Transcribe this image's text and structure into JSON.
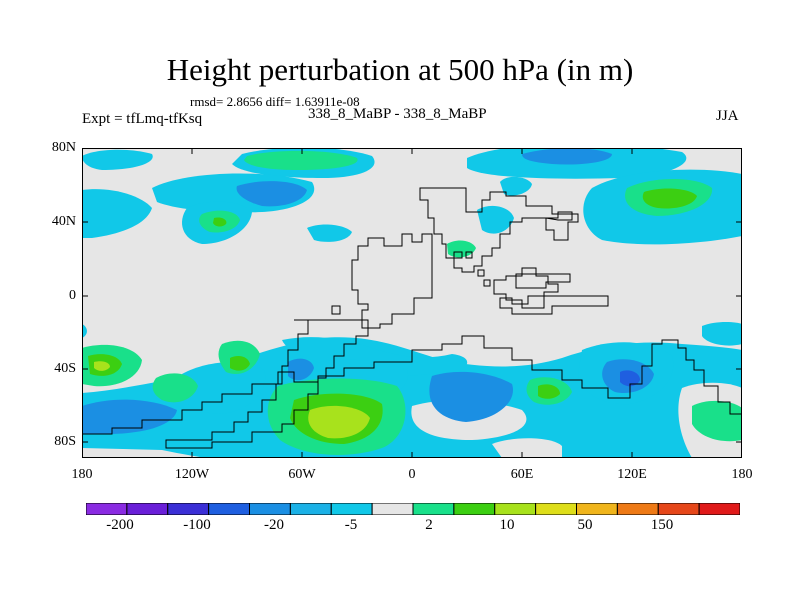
{
  "title": "Height perturbation at 500 hPa (in m)",
  "stats_line": "rmsd= 2.8656 diff= 1.63911e-08",
  "expt_label": "Expt = tfLmq-tfKsq",
  "case_label": "338_8_MaBP - 338_8_MaBP",
  "season": "JJA",
  "lat_labels": [
    "80N",
    "40N",
    "0",
    "40S",
    "80S"
  ],
  "lon_labels": [
    "180",
    "120W",
    "60W",
    "0",
    "60E",
    "120E",
    "180"
  ],
  "colorbar": {
    "colors": [
      "#8a2be2",
      "#6a1fd8",
      "#3b2fd6",
      "#1f5fe0",
      "#1b8fe3",
      "#1bb1e6",
      "#11c8e8",
      "#e6e6e6",
      "#19e08a",
      "#3ccf12",
      "#a8e21c",
      "#dede1a",
      "#f0b51c",
      "#ee7a16",
      "#e6471a",
      "#e01a1a"
    ],
    "labels": [
      "-200",
      "-100",
      "-20",
      "-5",
      "2",
      "10",
      "50",
      "150"
    ]
  },
  "map_colors": {
    "background": "#e6e6e6",
    "cyan": "#11c8e8",
    "blue": "#1b8fe3",
    "dark_blue": "#1f5fe0",
    "green": "#19e08a",
    "lime": "#3ccf12",
    "yellow_green": "#a8e21c"
  }
}
